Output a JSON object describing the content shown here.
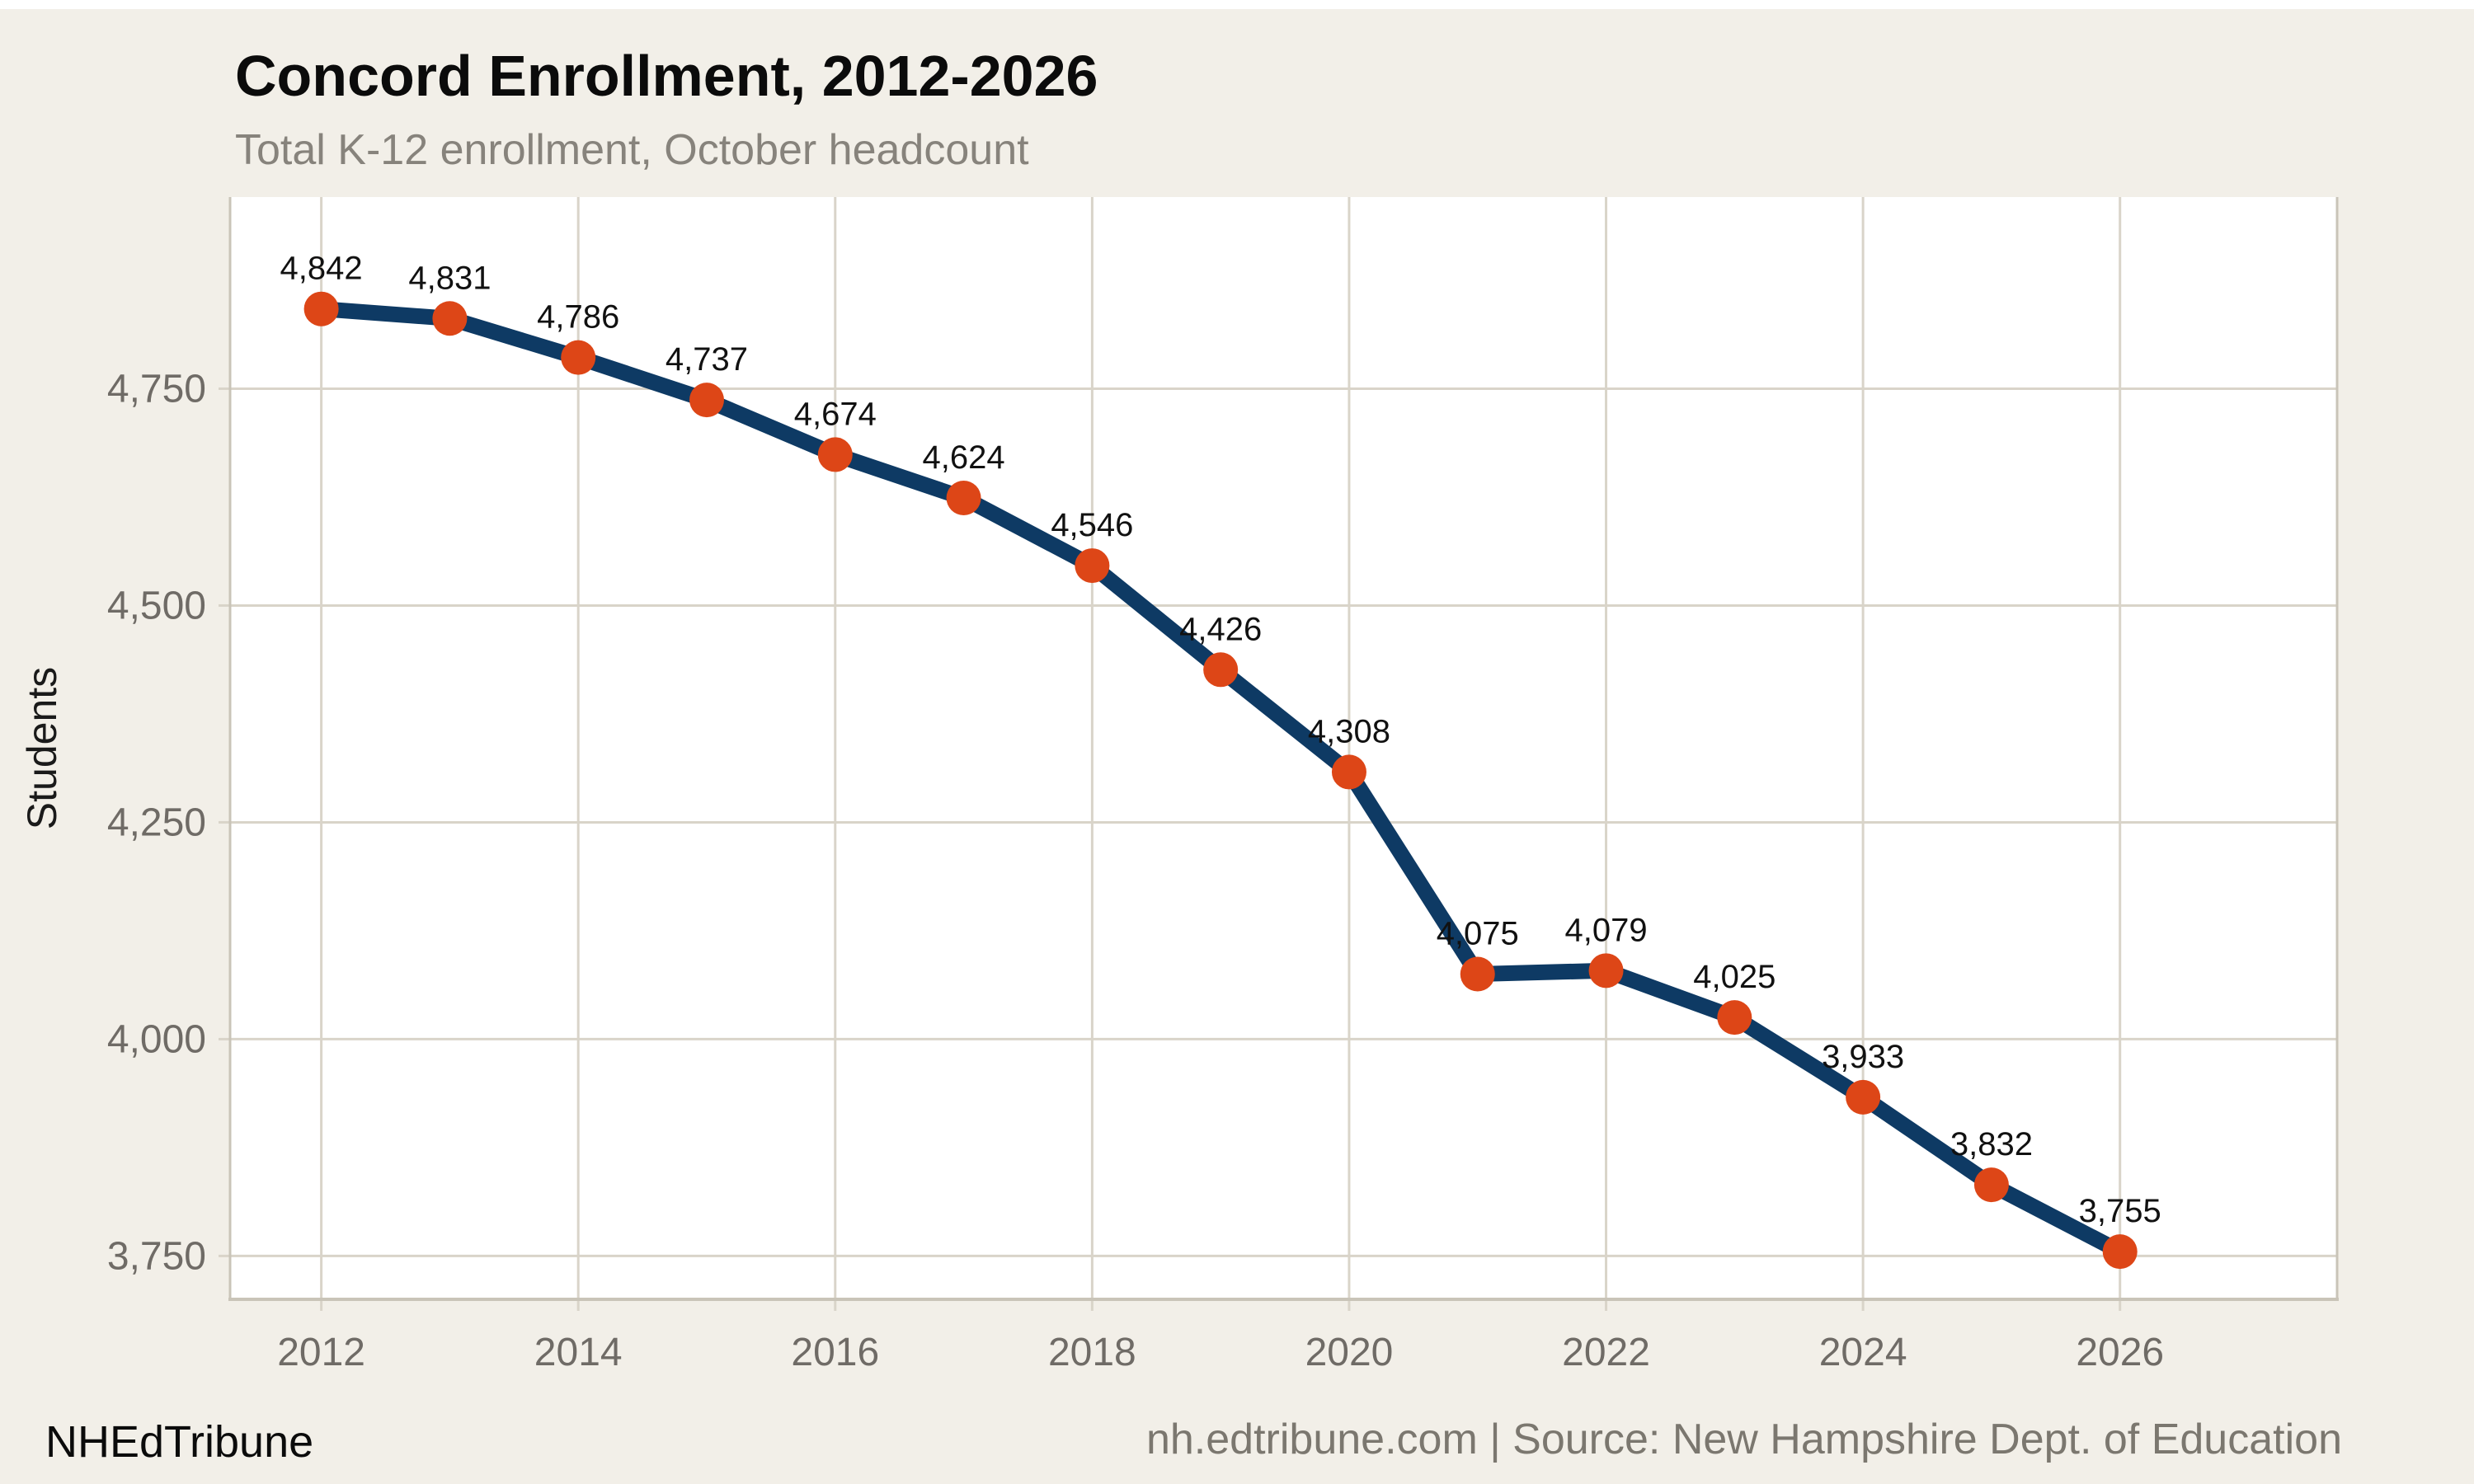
{
  "window": {
    "top_strip_color": "#ffffff",
    "page_background": "#f2efe8"
  },
  "header": {
    "title": "Concord Enrollment, 2012-2026",
    "subtitle": "Total K-12 enrollment, October headcount"
  },
  "footer": {
    "brand": "NHEdTribune",
    "attribution": "nh.edtribune.com | Source: New Hampshire Dept. of Education"
  },
  "chart_data": {
    "type": "line",
    "title": "Concord Enrollment, 2012-2026",
    "subtitle": "Total K-12 enrollment, October headcount",
    "xlabel": "",
    "ylabel": "Students",
    "x": [
      2012,
      2013,
      2014,
      2015,
      2016,
      2017,
      2018,
      2019,
      2020,
      2021,
      2022,
      2023,
      2024,
      2025,
      2026
    ],
    "values": [
      4842,
      4831,
      4786,
      4737,
      4674,
      4624,
      4546,
      4426,
      4308,
      4075,
      4079,
      4025,
      3933,
      3832,
      3755
    ],
    "point_labels": [
      "4,842",
      "4,831",
      "4,786",
      "4,737",
      "4,674",
      "4,624",
      "4,546",
      "4,426",
      "4,308",
      "4,075",
      "4,079",
      "4,025",
      "3,933",
      "3,832",
      "3,755"
    ],
    "x_ticks": [
      2012,
      2014,
      2016,
      2018,
      2020,
      2022,
      2024,
      2026
    ],
    "x_tick_labels": [
      "2012",
      "2014",
      "2016",
      "2018",
      "2020",
      "2022",
      "2024",
      "2026"
    ],
    "y_ticks": [
      3750,
      4000,
      4250,
      4500,
      4750
    ],
    "y_tick_labels": [
      "3,750",
      "4,000",
      "4,250",
      "4,500",
      "4,750"
    ],
    "xlim": [
      2011.29,
      2027.69
    ],
    "ylim": [
      3700,
      4971
    ],
    "grid": true,
    "legend": "none",
    "colors": {
      "line": "#0e3a64",
      "marker": "#dd4617",
      "plot_background": "#ffffff",
      "gridline": "#d9d4c9",
      "axis_line": "#c9c4b8",
      "tick_label": "#6f6b66",
      "point_label": "#111111",
      "axis_title": "#1a1a1a"
    }
  }
}
